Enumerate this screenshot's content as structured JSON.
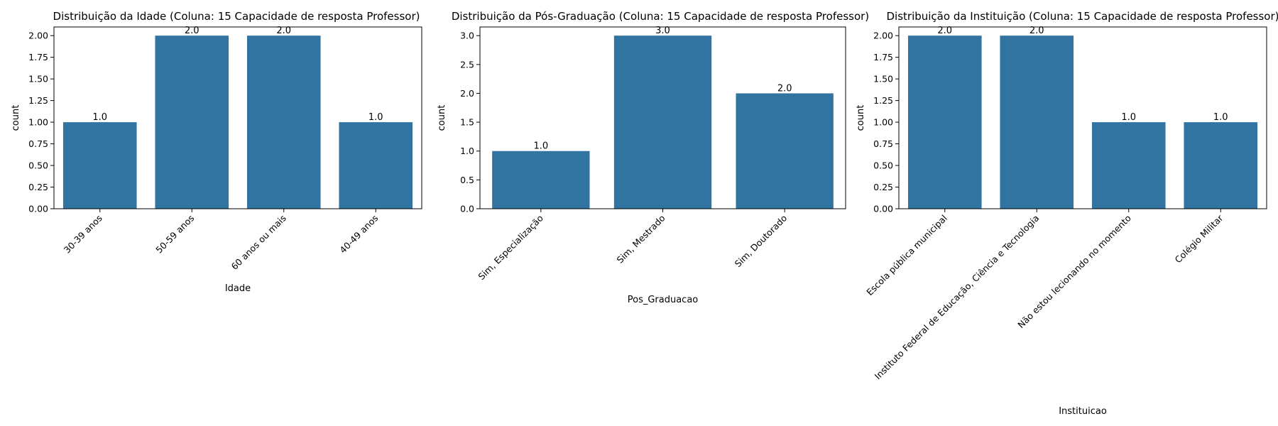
{
  "chart_data": [
    {
      "type": "bar",
      "title": "Distribuição da Idade (Coluna: 15 Capacidade de resposta Professor)",
      "xlabel": "Idade",
      "ylabel": "count",
      "categories": [
        "30-39 anos",
        "50-59 anos",
        "60 anos ou mais",
        "40-49 anos"
      ],
      "values": [
        1.0,
        2.0,
        2.0,
        1.0
      ],
      "data_labels": [
        "1.0",
        "2.0",
        "2.0",
        "1.0"
      ],
      "ylim": [
        0,
        2.1
      ],
      "yticks": [
        "0.00",
        "0.25",
        "0.50",
        "0.75",
        "1.00",
        "1.25",
        "1.50",
        "1.75",
        "2.00"
      ],
      "bar_color": "#3274a1",
      "grid": false
    },
    {
      "type": "bar",
      "title": "Distribuição da Pós-Graduação (Coluna: 15 Capacidade de resposta Professor)",
      "xlabel": "Pos_Graduacao",
      "ylabel": "count",
      "categories": [
        "Sim, Especialização",
        "Sim, Mestrado",
        "Sim, Doutorado"
      ],
      "values": [
        1.0,
        3.0,
        2.0
      ],
      "data_labels": [
        "1.0",
        "3.0",
        "2.0"
      ],
      "ylim": [
        0,
        3.15
      ],
      "yticks": [
        "0.0",
        "0.5",
        "1.0",
        "1.5",
        "2.0",
        "2.5",
        "3.0"
      ],
      "bar_color": "#3274a1",
      "grid": false
    },
    {
      "type": "bar",
      "title": "Distribuição da Instituição (Coluna: 15 Capacidade de resposta Professor)",
      "xlabel": "Instituicao",
      "ylabel": "count",
      "categories": [
        "Escola pública municipal",
        "Instituto Federal de Educação, Ciência e Tecnologia",
        "Não estou lecionando no momento",
        "Colégio Militar"
      ],
      "values": [
        2.0,
        2.0,
        1.0,
        1.0
      ],
      "data_labels": [
        "2.0",
        "2.0",
        "1.0",
        "1.0"
      ],
      "ylim": [
        0,
        2.1
      ],
      "yticks": [
        "0.00",
        "0.25",
        "0.50",
        "0.75",
        "1.00",
        "1.25",
        "1.50",
        "1.75",
        "2.00"
      ],
      "bar_color": "#3274a1",
      "grid": false
    }
  ]
}
